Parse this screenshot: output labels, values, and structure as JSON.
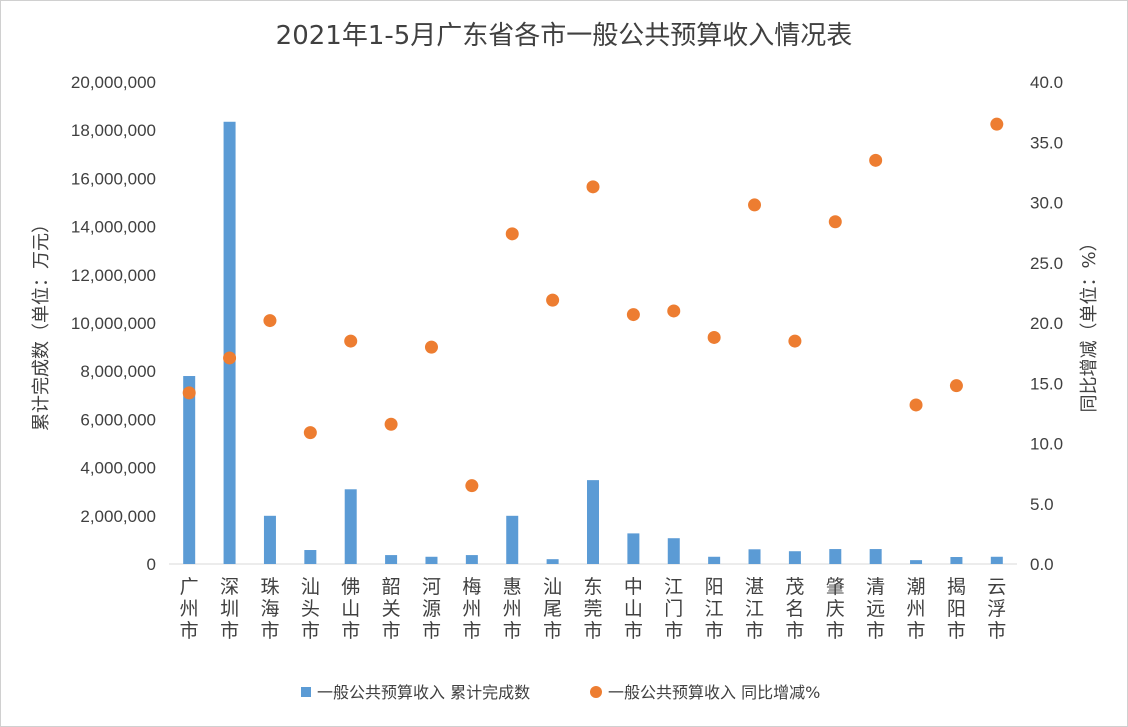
{
  "chart_data": {
    "type": "bar",
    "title": "2021年1-5月广东省各市一般公共预算收入情况表",
    "ylabel": "累计完成数（单位：万元）",
    "y2label": "同比增减（单位：%）",
    "ylim": [
      0,
      20000000
    ],
    "y2lim": [
      0,
      40
    ],
    "yticks": [
      "0",
      "2,000,000",
      "4,000,000",
      "6,000,000",
      "8,000,000",
      "10,000,000",
      "12,000,000",
      "14,000,000",
      "16,000,000",
      "18,000,000",
      "20,000,000"
    ],
    "y2ticks": [
      "0.0",
      "5.0",
      "10.0",
      "15.0",
      "20.0",
      "25.0",
      "30.0",
      "35.0",
      "40.0"
    ],
    "grid": false,
    "legend_position": "bottom",
    "categories": [
      "广州市",
      "深圳市",
      "珠海市",
      "汕头市",
      "佛山市",
      "韶关市",
      "河源市",
      "梅州市",
      "惠州市",
      "汕尾市",
      "东莞市",
      "中山市",
      "江门市",
      "阳江市",
      "湛江市",
      "茂名市",
      "肇庆市",
      "清远市",
      "潮州市",
      "揭阳市",
      "云浮市"
    ],
    "series": [
      {
        "name": "一般公共预算收入 累计完成数",
        "type": "bar",
        "axis": "left",
        "color": "#5b9bd5",
        "values": [
          7800000,
          18350000,
          2000000,
          580000,
          3100000,
          370000,
          300000,
          370000,
          2000000,
          200000,
          3480000,
          1270000,
          1070000,
          300000,
          610000,
          530000,
          620000,
          620000,
          160000,
          290000,
          300000
        ]
      },
      {
        "name": "一般公共预算收入 同比增减%",
        "type": "scatter",
        "axis": "right",
        "color": "#ed7d31",
        "values": [
          14.2,
          17.1,
          20.2,
          10.9,
          18.5,
          11.6,
          18.0,
          6.5,
          27.4,
          21.9,
          31.3,
          20.7,
          21.0,
          18.8,
          29.8,
          18.5,
          28.4,
          33.5,
          13.2,
          14.8,
          36.5
        ]
      }
    ]
  }
}
